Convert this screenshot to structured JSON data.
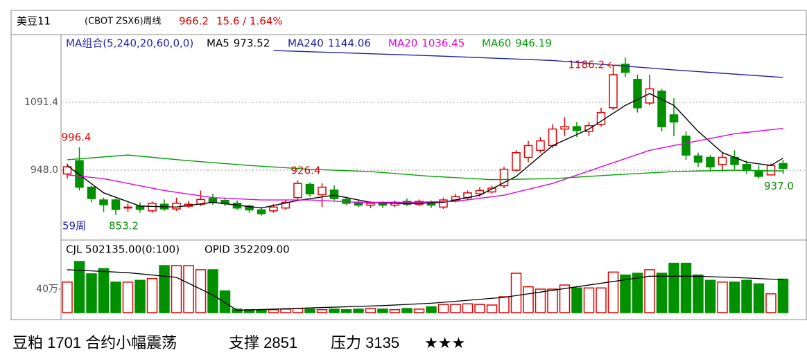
{
  "header": {
    "symbol": "美豆11",
    "code": "(CBOT ZSX6)周线",
    "price": "966.2",
    "change": "15.6 / 1.64%"
  },
  "caption": {
    "text": "豆粕 1701 合约小幅震荡",
    "support": "支撑 2851",
    "pressure": "压力 3135",
    "rating": "★★★"
  },
  "chart_data": [
    {
      "type": "candlestick",
      "legend_title": "MA组合(5,240,20,60,0,0)",
      "period_label": "59周",
      "up_color": "#e00000",
      "down_color": "#009000",
      "open": [
        940,
        968,
        912,
        885,
        885,
        868,
        872,
        862,
        876,
        866,
        872,
        876,
        888,
        884,
        878,
        872,
        864,
        862,
        868,
        890,
        918,
        896,
        906,
        886,
        880,
        874,
        878,
        874,
        882,
        876,
        878,
        870,
        885,
        890,
        898,
        902,
        915,
        948,
        975,
        990,
        1000,
        1035,
        1040,
        1030,
        1045,
        1080,
        1172,
        1140,
        1090,
        1115,
        1065,
        1020,
        978,
        975,
        960,
        975,
        960,
        945,
        938,
        962
      ],
      "high": [
        962,
        996.4,
        915,
        890,
        888,
        878,
        880,
        882,
        886,
        890,
        883,
        905,
        898,
        890,
        884,
        875,
        870,
        876,
        886,
        926.4,
        922,
        920,
        916,
        892,
        886,
        882,
        882,
        884,
        888,
        886,
        884,
        890,
        898,
        905,
        912,
        915,
        955,
        990,
        1010,
        1018,
        1045,
        1060,
        1050,
        1050,
        1080,
        1170,
        1186.2,
        1150,
        1150,
        1120,
        1100,
        1030,
        985,
        980,
        985,
        990,
        968,
        958,
        962,
        970
      ],
      "low": [
        930,
        905,
        880,
        860,
        853.2,
        860,
        858,
        858,
        862,
        862,
        868,
        872,
        875,
        872,
        864,
        858,
        852,
        858,
        864,
        886,
        892,
        870,
        884,
        874,
        870,
        868,
        868,
        870,
        872,
        872,
        868,
        866,
        880,
        885,
        892,
        898,
        910,
        945,
        965,
        985,
        995,
        1020,
        1018,
        1020,
        1040,
        1075,
        1145,
        1070,
        1085,
        1030,
        1020,
        970,
        955,
        945,
        945,
        950,
        940,
        930,
        937,
        940
      ],
      "close": [
        955,
        912,
        888,
        875,
        865,
        870,
        865,
        878,
        866,
        878,
        876,
        886,
        880,
        878,
        868,
        864,
        856,
        870,
        880,
        920,
        898,
        912,
        888,
        878,
        874,
        878,
        874,
        880,
        876,
        882,
        874,
        885,
        892,
        900,
        905,
        910,
        950,
        985,
        1000,
        1010,
        1035,
        1040,
        1032,
        1042,
        1070,
        1150,
        1155,
        1080,
        1120,
        1040,
        1050,
        980,
        965,
        955,
        975,
        960,
        950,
        935,
        958,
        952
      ],
      "annotations": [
        {
          "value": 996.4
        },
        {
          "value": 853.2
        },
        {
          "value": 926.4
        },
        {
          "value": 1186.2
        },
        {
          "value": 937,
          "label": "937.0"
        }
      ],
      "series": [
        {
          "name": "MA5",
          "color": "#000000",
          "x": [
            0,
            3,
            6,
            9,
            12,
            16,
            19,
            22,
            25,
            28,
            31,
            34,
            37,
            40,
            43,
            46,
            48,
            50,
            52,
            54,
            56,
            58,
            59
          ],
          "values": [
            958,
            900,
            872,
            870,
            880,
            868,
            884,
            895,
            880,
            877,
            880,
            895,
            935,
            1000,
            1035,
            1085,
            1110,
            1085,
            1030,
            985,
            965,
            958,
            973.52
          ]
        },
        {
          "name": "MA240",
          "color": "#2020a0",
          "x": [
            17,
            30,
            40,
            50,
            59
          ],
          "values": [
            1201,
            1190,
            1180,
            1160,
            1144.06
          ]
        },
        {
          "name": "MA20",
          "color": "#e000e0",
          "x": [
            0,
            3,
            8,
            12,
            16,
            20,
            24,
            28,
            32,
            36,
            40,
            44,
            48,
            52,
            55,
            59
          ],
          "values": [
            938,
            930,
            905,
            890,
            885,
            885,
            880,
            880,
            882,
            895,
            920,
            955,
            990,
            1010,
            1025,
            1036.45
          ]
        },
        {
          "name": "MA60",
          "color": "#00a000",
          "x": [
            0,
            5,
            10,
            15,
            20,
            25,
            30,
            35,
            40,
            45,
            50,
            55,
            59
          ],
          "values": [
            970,
            980,
            968,
            958,
            950,
            945,
            935,
            928,
            930,
            938,
            945,
            948,
            946.19
          ]
        }
      ],
      "ylim": [
        803.2,
        1227.4
      ],
      "yticks": [
        {
          "value": 948,
          "label": "948.0"
        },
        1091.4
      ],
      "grid": true
    },
    {
      "type": "bar",
      "header_left": "CJL  502135.00(0:100)",
      "header_right": "OPID  352209.00",
      "values": [
        520000,
        870000,
        660000,
        750000,
        520000,
        520000,
        550000,
        580000,
        800000,
        800000,
        800000,
        730000,
        730000,
        370000,
        60000,
        50000,
        40000,
        50000,
        60000,
        70000,
        60000,
        50000,
        60000,
        50000,
        60000,
        70000,
        60000,
        50000,
        70000,
        60000,
        100000,
        140000,
        140000,
        150000,
        140000,
        130000,
        270000,
        670000,
        440000,
        400000,
        400000,
        470000,
        420000,
        420000,
        420000,
        690000,
        640000,
        670000,
        730000,
        670000,
        840000,
        840000,
        640000,
        550000,
        520000,
        520000,
        550000,
        490000,
        320000,
        570000
      ],
      "ma_line": {
        "color": "#000000",
        "x": [
          0,
          5,
          9,
          12,
          14,
          20,
          26,
          30,
          36,
          40,
          45,
          48,
          52,
          56,
          59
        ],
        "values": [
          730000,
          680000,
          600000,
          300000,
          40000,
          80000,
          120000,
          160000,
          260000,
          380000,
          530000,
          620000,
          620000,
          590000,
          560000
        ]
      },
      "ylim": [
        0,
        1200000
      ],
      "yticks": [
        {
          "value": 400000,
          "label": "40万"
        }
      ],
      "grid": false
    }
  ]
}
